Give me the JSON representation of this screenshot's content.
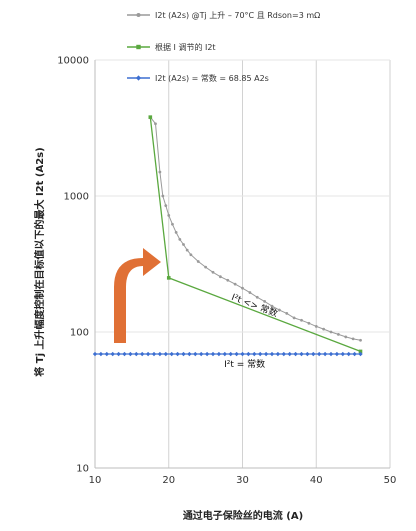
{
  "chart_data": {
    "type": "line",
    "xlabel": "通过电子保险丝的电流 (A)",
    "ylabel": "将 Tj 上升幅度控制在目标值以下的最大 I2t (A2s)",
    "xlim": [
      10,
      50
    ],
    "ylim": [
      10,
      10000
    ],
    "y_scale": "log",
    "x_ticks": [
      10,
      20,
      30,
      40,
      50
    ],
    "y_ticks": [
      10,
      100,
      1000,
      10000
    ],
    "x_tick_labels": [
      "10",
      "20",
      "30",
      "40",
      "50"
    ],
    "y_tick_labels": [
      "10",
      "100",
      "1000",
      "10000"
    ],
    "grid": "vertical",
    "legend_position": "top",
    "series": [
      {
        "name": "I2t (A2s) @Tj 上升 – 70°C 且 Rdson=3 mΩ",
        "color": "#9a9a9a",
        "marker": "circle",
        "x": [
          17.5,
          18.2,
          18.8,
          19.2,
          19.6,
          20.0,
          20.5,
          21.0,
          21.5,
          22.0,
          22.5,
          23.0,
          24.0,
          25.0,
          26.0,
          27.0,
          28.0,
          29.0,
          30.0,
          31.0,
          32.0,
          33.0,
          34.0,
          35.0,
          36.0,
          37.0,
          38.0,
          39.0,
          40.0,
          41.0,
          42.0,
          43.0,
          44.0,
          45.0,
          46.0
        ],
        "y": [
          3800,
          3400,
          1500,
          1000,
          850,
          720,
          620,
          540,
          480,
          440,
          400,
          370,
          330,
          300,
          275,
          255,
          240,
          225,
          210,
          195,
          180,
          168,
          155,
          145,
          137,
          127,
          122,
          116,
          110,
          105,
          100,
          96,
          92,
          89,
          87
        ]
      },
      {
        "name": "根据 I 调节的 I2t",
        "color": "#5aa83f",
        "marker": "square",
        "x": [
          17.5,
          20.0,
          46.0
        ],
        "y": [
          3800,
          250,
          72
        ]
      },
      {
        "name": "I2t (A2s) = 常数 = 68.85 A2s",
        "color": "#3d6fd1",
        "marker": "diamond",
        "x": [
          10.0,
          10.8,
          11.6,
          12.4,
          13.2,
          14.0,
          14.8,
          15.6,
          16.4,
          17.2,
          18.0,
          18.8,
          19.6,
          20.4,
          21.2,
          22.0,
          22.8,
          23.6,
          24.4,
          25.2,
          26.0,
          26.8,
          27.6,
          28.4,
          29.2,
          30.0,
          30.8,
          31.6,
          32.4,
          33.2,
          34.0,
          34.8,
          35.6,
          36.4,
          37.2,
          38.0,
          38.8,
          39.6,
          40.4,
          41.2,
          42.0,
          42.8,
          43.6,
          44.4,
          45.2,
          46.0
        ],
        "y": [
          68.85,
          68.85,
          68.85,
          68.85,
          68.85,
          68.85,
          68.85,
          68.85,
          68.85,
          68.85,
          68.85,
          68.85,
          68.85,
          68.85,
          68.85,
          68.85,
          68.85,
          68.85,
          68.85,
          68.85,
          68.85,
          68.85,
          68.85,
          68.85,
          68.85,
          68.85,
          68.85,
          68.85,
          68.85,
          68.85,
          68.85,
          68.85,
          68.85,
          68.85,
          68.85,
          68.85,
          68.85,
          68.85,
          68.85,
          68.85,
          68.85,
          68.85,
          68.85,
          68.85,
          68.85,
          68.85
        ]
      }
    ],
    "annotations": [
      {
        "text": "I²t <> 常数",
        "x": 31.5,
        "y": 150,
        "rotate_with_series": "根据 I 调节的 I2t"
      },
      {
        "text": "I²t = 常数",
        "x": 33,
        "y": 58
      }
    ],
    "arrow_color": "#e07035"
  }
}
